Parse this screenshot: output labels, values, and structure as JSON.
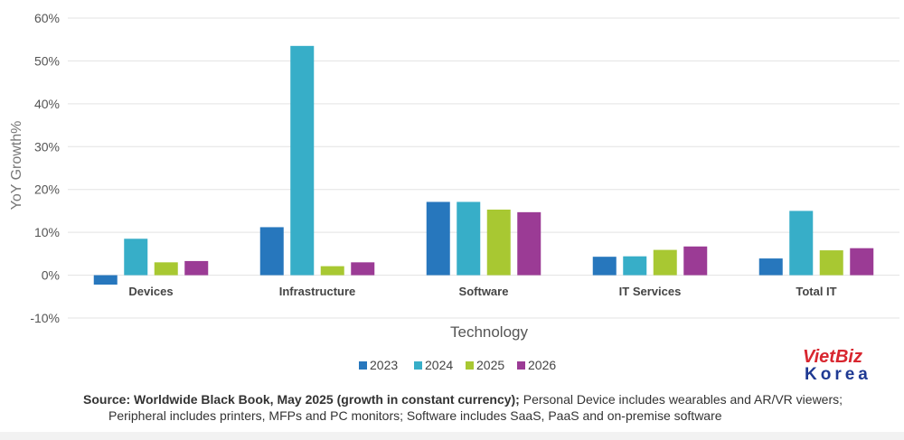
{
  "chart_data": {
    "type": "bar",
    "categories": [
      "Devices",
      "Infrastructure",
      "Software",
      "IT Services",
      "Total IT"
    ],
    "series": [
      {
        "name": "2023",
        "color": "#2777bd",
        "values": [
          -2.2,
          11.2,
          17.1,
          4.3,
          3.9
        ]
      },
      {
        "name": "2024",
        "color": "#37aec8",
        "values": [
          8.5,
          53.5,
          17.1,
          4.4,
          15.0
        ]
      },
      {
        "name": "2025",
        "color": "#a8c832",
        "values": [
          3.0,
          2.1,
          15.3,
          5.9,
          5.8
        ]
      },
      {
        "name": "2026",
        "color": "#9b3b95",
        "values": [
          3.3,
          3.0,
          14.7,
          6.7,
          6.3
        ]
      }
    ],
    "title": "",
    "xlabel": "Technology",
    "ylabel": "YoY Growth%",
    "ylim": [
      -10,
      60
    ],
    "yticks": [
      -10,
      0,
      10,
      20,
      30,
      40,
      50,
      60
    ],
    "ytick_labels": [
      "-10%",
      "0%",
      "10%",
      "20%",
      "30%",
      "40%",
      "50%",
      "60%"
    ],
    "grid": true,
    "legend_position": "bottom-center"
  },
  "source_note": {
    "bold": "Source: Worldwide Black Book, May 2025 (growth in constant currency);",
    "line1": " Personal Device includes wearables and AR/VR viewers;",
    "line2": "Peripheral includes printers, MFPs and PC monitors; Software includes SaaS, PaaS and on-premise software"
  },
  "logo": {
    "line1": "VietBiz",
    "line2": "Korea"
  }
}
